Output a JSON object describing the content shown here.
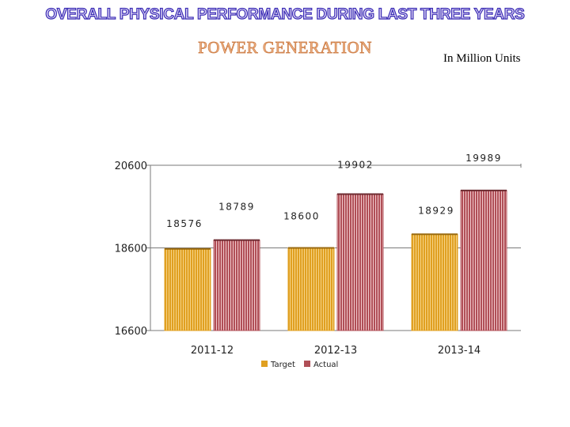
{
  "header": {
    "title": "OVERALL  PHYSICAL PERFORMANCE DURING LAST THREE YEARS",
    "subtitle": "POWER GENERATION",
    "unit": "In Million Units"
  },
  "colors": {
    "target": "#e0a021",
    "actual": "#b04f57",
    "title_fill": "#d9d0f3",
    "title_stroke": "#3b2db5",
    "subtitle": "#f0b58a"
  },
  "chart_data": {
    "type": "bar",
    "categories": [
      "2011-12",
      "2012-13",
      "2013-14"
    ],
    "series": [
      {
        "name": "Target",
        "values": [
          18576,
          18600,
          18929
        ],
        "labels": [
          "18576",
          "18600",
          "18929"
        ]
      },
      {
        "name": "Actual",
        "values": [
          18789,
          19902,
          19989
        ],
        "labels": [
          "18789",
          "19902",
          "19989"
        ]
      }
    ],
    "y_ticks": [
      16600,
      18600,
      20600
    ],
    "y_tick_labels": [
      "16600",
      "18600",
      "20600"
    ],
    "ylim": [
      16600,
      20600
    ],
    "legend_position": "bottom",
    "grid": true
  }
}
